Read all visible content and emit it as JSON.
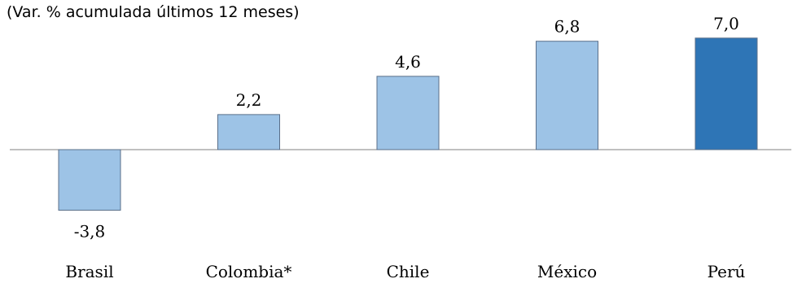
{
  "chart_data": {
    "type": "bar",
    "subtitle": "(Var. % acumulada últimos 12 meses)",
    "categories": [
      "Brasil",
      "Colombia*",
      "Chile",
      "México",
      "Perú"
    ],
    "values": [
      -3.8,
      2.2,
      4.6,
      6.8,
      7.0
    ],
    "value_labels": [
      "-3,8",
      "2,2",
      "4,6",
      "6,8",
      "7,0"
    ],
    "colors": {
      "default_bar": "#9dc3e6",
      "highlight_bar": "#2e75b6",
      "bar_border": "#5a6f8a",
      "zero_line": "#808080"
    },
    "highlight_category": "Perú",
    "ylim": [
      -4.0,
      7.5
    ],
    "grid": false,
    "legend": "none"
  }
}
